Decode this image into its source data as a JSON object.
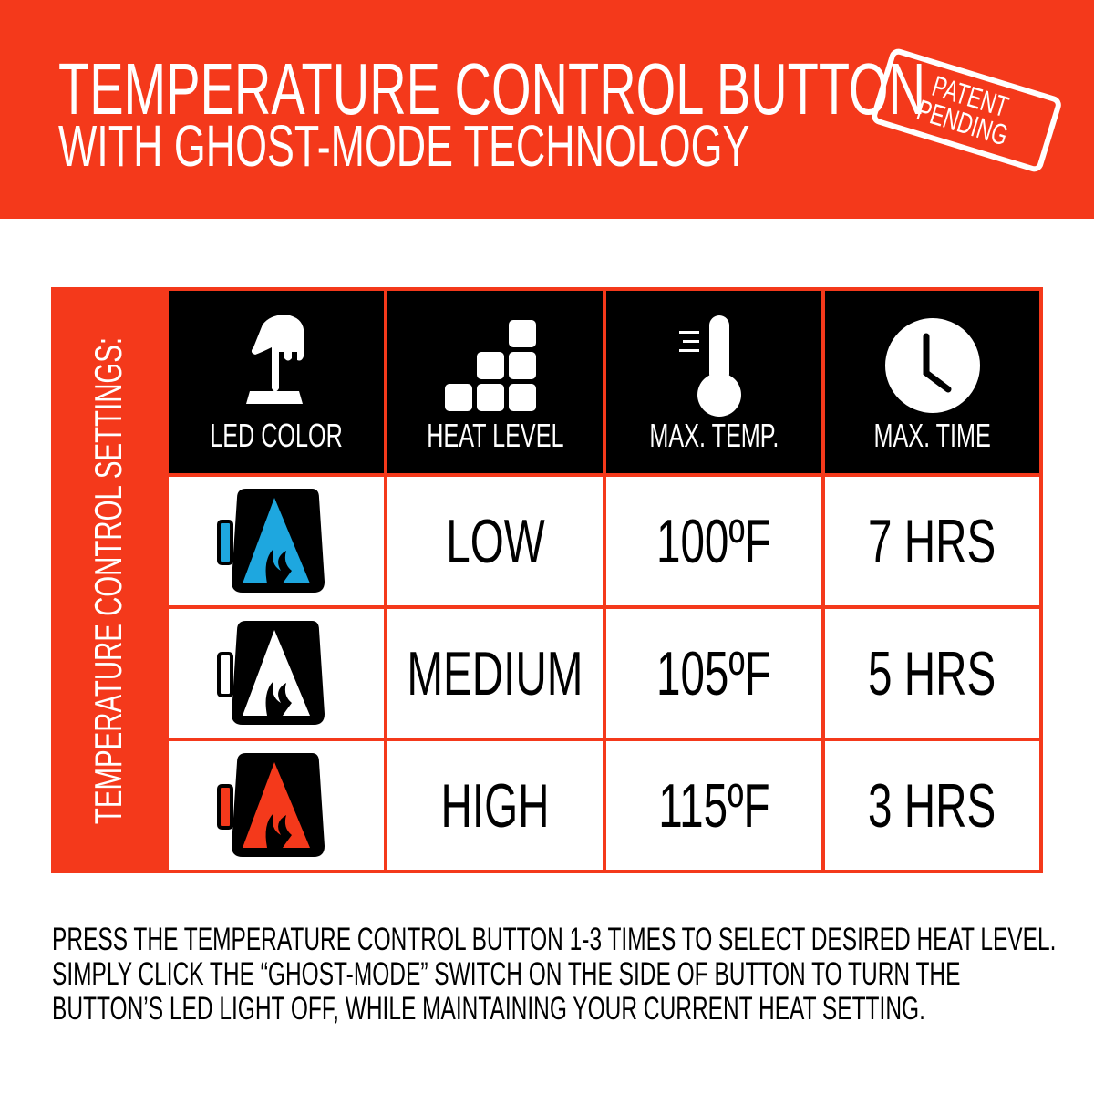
{
  "header": {
    "title": "TEMPERATURE CONTROL BUTTON",
    "subtitle": "WITH GHOST-MODE TECHNOLOGY",
    "stamp": [
      "PATENT",
      "PENDING"
    ]
  },
  "colors": {
    "brand": "#F4391B",
    "low": "#1EA7DF",
    "medium": "#FFFFFF",
    "high": "#F4391B"
  },
  "table": {
    "side_label": "TEMPERATURE CONTROL SETTINGS:",
    "headers": [
      {
        "label": "LED COLOR",
        "icon": "hand-press-button-icon"
      },
      {
        "label": "HEAT LEVEL",
        "icon": "heat-level-blocks-icon"
      },
      {
        "label": "MAX. TEMP.",
        "icon": "thermometer-icon"
      },
      {
        "label": "MAX. TIME",
        "icon": "clock-icon"
      }
    ],
    "rows": [
      {
        "led": "blue",
        "level": "LOW",
        "temp": "100ºF",
        "time": "7 HRS"
      },
      {
        "led": "white",
        "level": "MEDIUM",
        "temp": "105ºF",
        "time": "5 HRS"
      },
      {
        "led": "red",
        "level": "HIGH",
        "temp": "115ºF",
        "time": "3 HRS"
      }
    ]
  },
  "footer": [
    "PRESS THE TEMPERATURE CONTROL BUTTON 1-3 TIMES TO SELECT DESIRED HEAT LEVEL.",
    "SIMPLY CLICK THE “GHOST-MODE” SWITCH ON THE SIDE OF BUTTON TO TURN THE",
    "BUTTON’S LED LIGHT OFF, WHILE MAINTAINING YOUR CURRENT HEAT SETTING."
  ]
}
